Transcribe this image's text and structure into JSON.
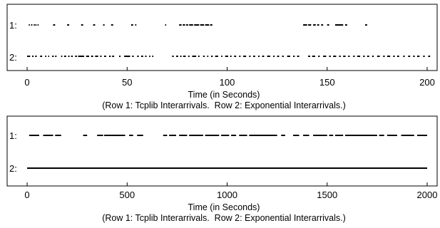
{
  "chart_data": [
    {
      "type": "scatter",
      "xlabel": "Time (in Seconds)",
      "caption": "(Row 1: Tcplib Interarrivals.  Row 2: Exponential Interarrivals.)",
      "xlim": [
        -10,
        205
      ],
      "xticks": [
        0,
        50,
        100,
        150,
        200
      ],
      "rows": [
        {
          "name": "1:",
          "segments": [
            [
              0.8,
              1.3
            ],
            [
              2.0,
              2.6
            ],
            [
              3.3,
              3.7
            ],
            [
              4.1,
              4.6
            ],
            [
              5.2,
              5.7
            ],
            [
              13.0,
              14.0
            ],
            [
              20.0,
              21.0
            ],
            [
              27.0,
              28.0
            ],
            [
              33.0,
              34.0
            ],
            [
              38.0,
              38.7
            ],
            [
              42.0,
              43.0
            ],
            [
              52.0,
              53.0
            ],
            [
              54.0,
              54.6
            ],
            [
              69.0,
              69.5
            ],
            [
              76.0,
              77.2
            ],
            [
              77.8,
              79.0
            ],
            [
              79.5,
              80.5
            ],
            [
              81.0,
              83.0
            ],
            [
              83.5,
              86.0
            ],
            [
              86.5,
              88.5
            ],
            [
              89.0,
              91.0
            ],
            [
              91.5,
              92.6
            ],
            [
              138.0,
              140.0
            ],
            [
              140.5,
              142.0
            ],
            [
              143.0,
              144.3
            ],
            [
              145.0,
              146.0
            ],
            [
              147.0,
              148.0
            ],
            [
              150.0,
              151.0
            ],
            [
              154.0,
              158.0
            ],
            [
              159.0,
              160.0
            ],
            [
              169.0,
              170.0
            ]
          ]
        },
        {
          "name": "2:",
          "segments": [
            [
              0,
              1.5
            ],
            [
              2.5,
              3.2
            ],
            [
              4.0,
              4.8
            ],
            [
              6.5,
              7.5
            ],
            [
              9.0,
              9.6
            ],
            [
              10.5,
              11.0
            ],
            [
              12.5,
              13.3
            ],
            [
              14.0,
              14.7
            ],
            [
              17.0,
              17.6
            ],
            [
              18.5,
              19.5
            ],
            [
              20.5,
              21.2
            ],
            [
              22.0,
              22.8
            ],
            [
              24.0,
              24.9
            ],
            [
              25.5,
              28.5
            ],
            [
              29.5,
              31.0
            ],
            [
              32.0,
              33.0
            ],
            [
              34.0,
              35.5
            ],
            [
              36.5,
              37.2
            ],
            [
              38.5,
              39.5
            ],
            [
              41.0,
              41.8
            ],
            [
              42.5,
              43.5
            ],
            [
              46.0,
              46.7
            ],
            [
              48.5,
              51.5
            ],
            [
              52.5,
              53.3
            ],
            [
              55.0,
              55.8
            ],
            [
              57.0,
              58.0
            ],
            [
              59.0,
              59.7
            ],
            [
              61.0,
              61.6
            ],
            [
              62.5,
              63.1
            ],
            [
              72.5,
              73.3
            ],
            [
              74.5,
              75.5
            ],
            [
              76.5,
              77.2
            ],
            [
              78.0,
              79.3
            ],
            [
              80.5,
              81.2
            ],
            [
              82.5,
              84.5
            ],
            [
              85.5,
              86.2
            ],
            [
              88.0,
              88.8
            ],
            [
              90.0,
              90.6
            ],
            [
              92.0,
              92.8
            ],
            [
              94.0,
              95.5
            ],
            [
              97.0,
              97.6
            ],
            [
              99.0,
              100.5
            ],
            [
              101.5,
              102.2
            ],
            [
              103.5,
              104.5
            ],
            [
              106.0,
              106.7
            ],
            [
              108.0,
              109.5
            ],
            [
              111.0,
              111.7
            ],
            [
              113.0,
              114.0
            ],
            [
              115.5,
              116.2
            ],
            [
              117.5,
              118.5
            ],
            [
              120.0,
              121.5
            ],
            [
              123.0,
              123.7
            ],
            [
              125.0,
              126.0
            ],
            [
              127.5,
              128.3
            ],
            [
              130.0,
              131.5
            ],
            [
              133.0,
              133.8
            ],
            [
              135.0,
              136.0
            ],
            [
              140.5,
              141.5
            ],
            [
              142.5,
              144.0
            ],
            [
              145.5,
              146.3
            ],
            [
              148.0,
              149.5
            ],
            [
              151.0,
              151.8
            ],
            [
              153.0,
              154.5
            ],
            [
              156.0,
              156.8
            ],
            [
              158.0,
              159.2
            ],
            [
              160.5,
              161.3
            ],
            [
              163.0,
              163.8
            ],
            [
              165.0,
              166.5
            ],
            [
              168.0,
              168.8
            ],
            [
              170.0,
              171.0
            ],
            [
              172.5,
              173.3
            ],
            [
              175.0,
              176.3
            ],
            [
              178.0,
              178.8
            ],
            [
              180.0,
              181.5
            ],
            [
              183.0,
              183.8
            ],
            [
              185.0,
              186.0
            ],
            [
              188.0,
              188.8
            ],
            [
              190.5,
              191.5
            ],
            [
              193.0,
              193.8
            ],
            [
              195.0,
              196.2
            ],
            [
              198.0,
              198.8
            ],
            [
              200.5,
              201.5
            ]
          ]
        }
      ]
    },
    {
      "type": "scatter",
      "xlabel": "Time (in Seconds)",
      "caption": "(Row 1: Tcplib Interarrivals.  Row 2: Exponential Interarrivals.)",
      "xlim": [
        -100,
        2050
      ],
      "xticks": [
        0,
        500,
        1000,
        1500,
        2000
      ],
      "rows": [
        {
          "name": "1:",
          "segments": [
            [
              10,
              60
            ],
            [
              80,
              130
            ],
            [
              140,
              170
            ],
            [
              280,
              300
            ],
            [
              350,
              380
            ],
            [
              385,
              490
            ],
            [
              510,
              530
            ],
            [
              550,
              580
            ],
            [
              680,
              700
            ],
            [
              710,
              745
            ],
            [
              760,
              800
            ],
            [
              810,
              880
            ],
            [
              890,
              960
            ],
            [
              970,
              1010
            ],
            [
              1020,
              1045
            ],
            [
              1060,
              1100
            ],
            [
              1110,
              1250
            ],
            [
              1270,
              1290
            ],
            [
              1330,
              1360
            ],
            [
              1380,
              1410
            ],
            [
              1430,
              1500
            ],
            [
              1510,
              1530
            ],
            [
              1540,
              1580
            ],
            [
              1590,
              1750
            ],
            [
              1760,
              1785
            ],
            [
              1800,
              1850
            ],
            [
              1870,
              1935
            ],
            [
              1950,
              2000
            ]
          ]
        },
        {
          "name": "2:",
          "segments": [
            [
              0,
              2000
            ]
          ]
        }
      ]
    }
  ]
}
